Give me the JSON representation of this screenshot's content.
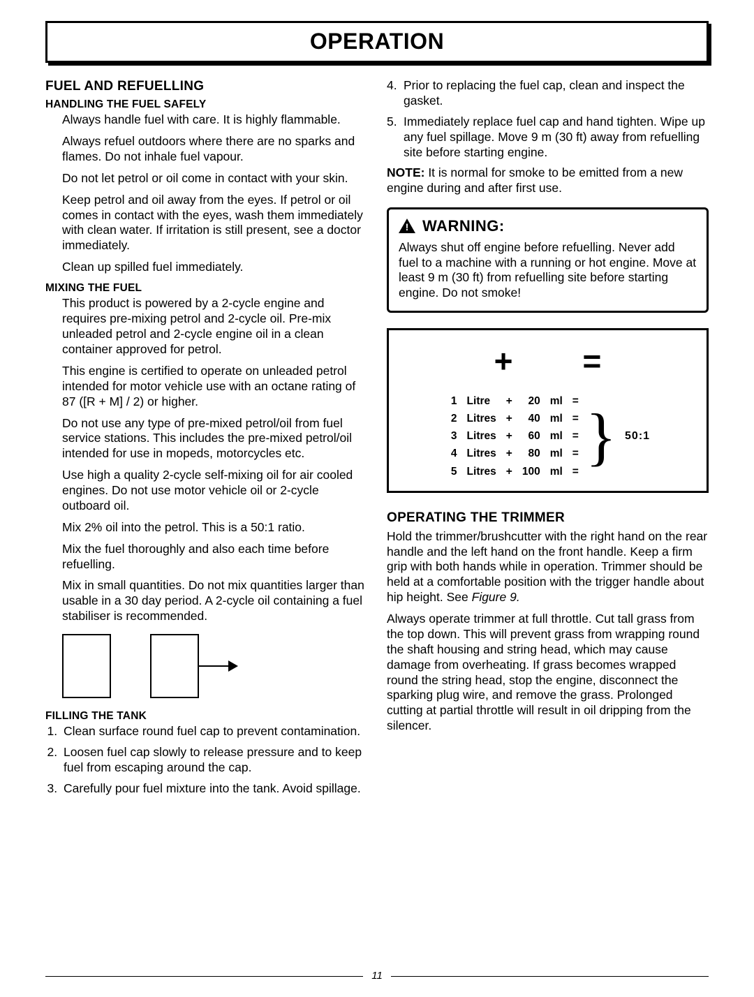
{
  "page_title": "OPERATION",
  "page_number": "11",
  "left": {
    "h_fuel": "FUEL AND REFUELLING",
    "h_handling": "HANDLING THE FUEL SAFELY",
    "handling": {
      "p1": "Always handle fuel with care. It is highly flammable.",
      "p2": "Always refuel outdoors where there are no sparks and flames. Do not inhale fuel vapour.",
      "p3": "Do not let petrol or oil come in contact with your skin.",
      "p4": "Keep petrol and oil away from the eyes. If petrol or oil comes in contact with the eyes, wash them immediately with clean water. If irritation is still present, see a doctor immediately.",
      "p5": "Clean up spilled fuel immediately."
    },
    "h_mixing": "MIXING THE FUEL",
    "mixing": {
      "p1": "This product is powered by a 2-cycle engine and requires pre-mixing petrol and 2-cycle oil. Pre-mix unleaded petrol and 2-cycle engine oil in a clean container approved for petrol.",
      "p2": "This engine is certified to operate on unleaded petrol intended for motor vehicle use with an octane rating of 87 ([R + M] / 2) or higher.",
      "p3": "Do not use any type of pre-mixed petrol/oil from fuel service stations.  This includes the pre-mixed petrol/oil intended for use in mopeds, motorcycles etc.",
      "p4": "Use high a quality 2-cycle self-mixing oil for air cooled engines. Do not use motor vehicle oil or 2-cycle outboard oil.",
      "p5": "Mix 2% oil into the petrol. This is a 50:1 ratio.",
      "p6": "Mix the fuel thoroughly and also each time before refuelling.",
      "p7": "Mix in small quantities. Do not mix quantities larger than usable in a 30 day period. A 2-cycle oil containing a fuel stabiliser is recommended."
    },
    "h_filling": "FILLING THE TANK",
    "filling": {
      "i1": "Clean surface round fuel cap to prevent contamination.",
      "i2": "Loosen fuel cap slowly to release pressure and to keep fuel from escaping around the cap.",
      "i3": "Carefully pour fuel mixture into the tank. Avoid spillage."
    }
  },
  "right": {
    "cont": {
      "i4n": "4.",
      "i4": "Prior to replacing the fuel cap, clean and inspect the gasket.",
      "i5n": "5.",
      "i5": "Immediately replace fuel cap and hand tighten. Wipe up any fuel spillage. Move 9 m (30 ft)  away from refuelling site before starting engine."
    },
    "note_label": "NOTE:",
    "note_text": "  It is normal for smoke to be emitted from a new engine during and after first use.",
    "warning_title": "WARNING:",
    "warning_text": "Always shut off engine before refuelling. Never add fuel to a machine with a running or hot engine. Move at least 9 m (30 ft)  from refuelling site before starting engine. Do not smoke!",
    "mix": {
      "sym_plus": "+",
      "sym_eq": "=",
      "ratio": "50:1",
      "rows": [
        {
          "qty": "1",
          "unit": "Litre",
          "plus": "+",
          "ml": "20",
          "mlu": "ml",
          "eq": "="
        },
        {
          "qty": "2",
          "unit": "Litres",
          "plus": "+",
          "ml": "40",
          "mlu": "ml",
          "eq": "="
        },
        {
          "qty": "3",
          "unit": "Litres",
          "plus": "+",
          "ml": "60",
          "mlu": "ml",
          "eq": "="
        },
        {
          "qty": "4",
          "unit": "Litres",
          "plus": "+",
          "ml": "80",
          "mlu": "ml",
          "eq": "="
        },
        {
          "qty": "5",
          "unit": "Litres",
          "plus": "+",
          "ml": "100",
          "mlu": "ml",
          "eq": "="
        }
      ]
    },
    "h_operating": "OPERATING THE TRIMMER",
    "operating": {
      "p1a": "Hold the trimmer/brushcutter with the right hand on the rear handle and the left hand on the front handle. Keep a firm grip with both hands while in operation. Trimmer should be held at a comfortable position with the trigger handle about hip height. See ",
      "p1b": "Figure 9.",
      "p2": "Always operate trimmer at full throttle. Cut tall grass from the top down. This will prevent grass from wrapping round the shaft housing and string head, which may cause damage from overheating. If grass becomes wrapped round the string head, stop the engine, disconnect the sparking plug wire, and remove the grass. Prolonged cutting at partial throttle will result in oil dripping from the silencer."
    }
  }
}
